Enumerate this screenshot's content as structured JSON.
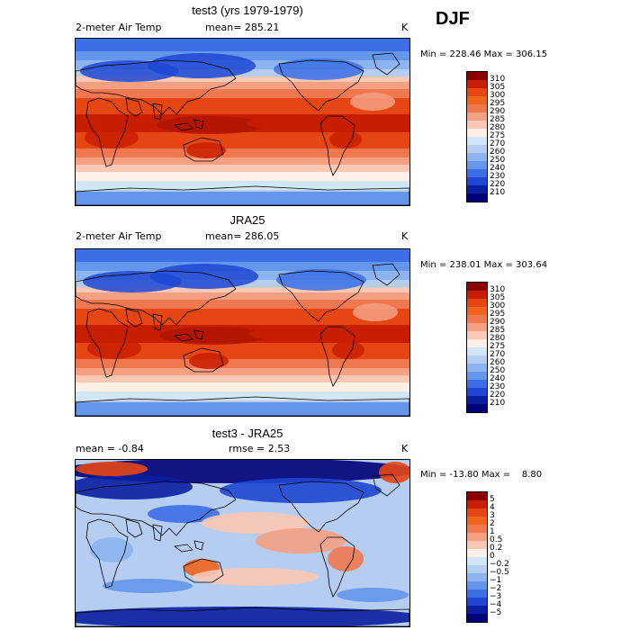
{
  "season": "DJF",
  "panels": [
    {
      "title": "test3 (yrs 1979-1979)",
      "left_label": "2-meter Air Temp",
      "mid_label": "mean= 285.21",
      "units": "K",
      "minmax": "Min = 228.46 Max = 306.15",
      "colorbar": {
        "labels": [
          "310",
          "305",
          "300",
          "295",
          "290",
          "285",
          "280",
          "275",
          "270",
          "260",
          "250",
          "240",
          "230",
          "220",
          "210"
        ],
        "colors": [
          "#8c0000",
          "#c81e00",
          "#e64614",
          "#f0641e",
          "#f07850",
          "#f5a082",
          "#fac8b4",
          "#fff0e6",
          "#d2e6fa",
          "#b4cdf0",
          "#8cb4f0",
          "#6496eb",
          "#3c6ee6",
          "#1e46d2",
          "#0a1ea0",
          "#000078"
        ]
      },
      "map_style": "temp"
    },
    {
      "title": "JRA25",
      "left_label": "2-meter Air Temp",
      "mid_label": "mean= 286.05",
      "units": "K",
      "minmax": "Min = 238.01 Max = 303.64",
      "colorbar": {
        "labels": [
          "310",
          "305",
          "300",
          "295",
          "290",
          "285",
          "280",
          "275",
          "270",
          "260",
          "250",
          "240",
          "230",
          "220",
          "210"
        ],
        "colors": [
          "#8c0000",
          "#c81e00",
          "#e64614",
          "#f0641e",
          "#f07850",
          "#f5a082",
          "#fac8b4",
          "#fff0e6",
          "#d2e6fa",
          "#b4cdf0",
          "#8cb4f0",
          "#6496eb",
          "#3c6ee6",
          "#1e46d2",
          "#0a1ea0",
          "#000078"
        ]
      },
      "map_style": "temp"
    },
    {
      "title": "test3 - JRA25",
      "left_label": "mean =   -0.84",
      "mid_label": "rmse =    2.53",
      "units": "K",
      "minmax": "Min = -13.80 Max =    8.80",
      "colorbar": {
        "labels": [
          "5",
          "4",
          "3",
          "2",
          "1",
          "0.5",
          "0.2",
          "0",
          "−0.2",
          "−0.5",
          "−1",
          "−2",
          "−3",
          "−4",
          "−5"
        ],
        "colors": [
          "#8c0000",
          "#c81e00",
          "#e64614",
          "#f0641e",
          "#f07850",
          "#f5a082",
          "#fac8b4",
          "#fff0e6",
          "#d2e6fa",
          "#b4cdf0",
          "#8cb4f0",
          "#6496eb",
          "#3c6ee6",
          "#1e46d2",
          "#0a1ea0",
          "#000078"
        ]
      },
      "map_style": "diff"
    }
  ]
}
